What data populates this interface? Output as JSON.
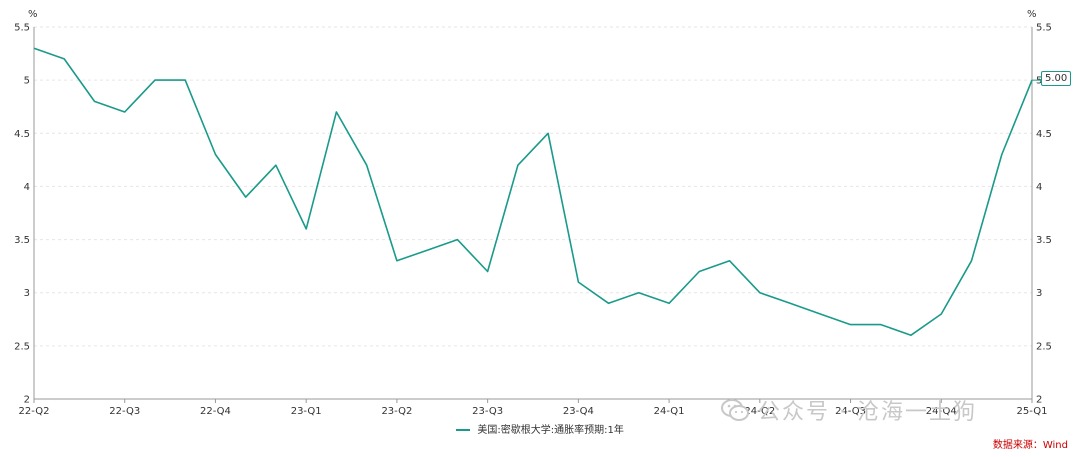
{
  "chart_data": {
    "type": "line",
    "y_unit_left": "%",
    "y_unit_right": "%",
    "ylim": [
      2,
      5.5
    ],
    "y_ticks": [
      2,
      2.5,
      3,
      3.5,
      4,
      4.5,
      5,
      5.5
    ],
    "y_tick_labels": [
      "2",
      "2.5",
      "3",
      "3.5",
      "4",
      "4.5",
      "5",
      "5.5"
    ],
    "x_tick_labels": [
      "22-Q2",
      "22-Q3",
      "22-Q4",
      "23-Q1",
      "23-Q2",
      "23-Q3",
      "23-Q4",
      "24-Q1",
      "24-Q2",
      "24-Q3",
      "24-Q4",
      "25-Q1"
    ],
    "grid": true,
    "legend_position": "bottom-center",
    "series": [
      {
        "name": "美国:密歇根大学:通胀率预期:1年",
        "color": "#1a9a8a",
        "values": [
          5.3,
          5.2,
          4.8,
          4.7,
          5.0,
          5.0,
          4.3,
          3.9,
          4.2,
          3.6,
          4.7,
          4.2,
          3.3,
          3.4,
          3.5,
          3.2,
          4.2,
          4.5,
          3.1,
          2.9,
          3.0,
          2.9,
          3.2,
          3.3,
          3.0,
          2.9,
          2.8,
          2.7,
          2.7,
          2.6,
          2.8,
          3.3,
          4.3,
          5.0
        ]
      }
    ],
    "last_value_label": "5.00"
  },
  "source": "数据来源：Wind",
  "watermark": "公众号 · 沧海一土狗"
}
